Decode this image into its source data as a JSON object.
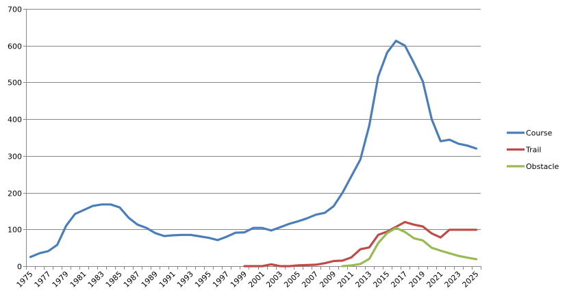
{
  "chart_data": {
    "type": "line",
    "title": "",
    "xlabel": "",
    "ylabel": "",
    "ylim": [
      0,
      700
    ],
    "yticks": [
      0,
      100,
      200,
      300,
      400,
      500,
      600,
      700
    ],
    "grid": true,
    "legend_position": "right",
    "x": [
      1975,
      1976,
      1977,
      1978,
      1979,
      1980,
      1981,
      1982,
      1983,
      1984,
      1985,
      1986,
      1987,
      1988,
      1989,
      1990,
      1991,
      1992,
      1993,
      1994,
      1995,
      1996,
      1997,
      1998,
      1999,
      2000,
      2001,
      2002,
      2003,
      2004,
      2005,
      2006,
      2007,
      2008,
      2009,
      2010,
      2011,
      2012,
      2013,
      2014,
      2015,
      2016,
      2017,
      2018,
      2019,
      2020,
      2021,
      2022,
      2023,
      2024,
      2025
    ],
    "x_tick_labels": [
      "1975",
      "1977",
      "1979",
      "1981",
      "1983",
      "1985",
      "1987",
      "1989",
      "1991",
      "1993",
      "1995",
      "1997",
      "1999",
      "2001",
      "2003",
      "2005",
      "2007",
      "2009",
      "2011",
      "2013",
      "2015",
      "2017",
      "2019",
      "2021",
      "2023",
      "2025"
    ],
    "series": [
      {
        "name": "Course",
        "color": "#4a7ebb",
        "values": [
          25,
          35,
          41,
          58,
          110,
          142,
          153,
          164,
          168,
          168,
          160,
          132,
          113,
          104,
          90,
          82,
          84,
          85,
          85,
          81,
          77,
          71,
          80,
          91,
          92,
          104,
          104,
          97,
          106,
          115,
          122,
          130,
          140,
          145,
          163,
          200,
          245,
          290,
          383,
          516,
          581,
          613,
          600,
          553,
          503,
          400,
          340,
          344,
          333,
          328,
          320
        ]
      },
      {
        "name": "Trail",
        "color": "#be4b48",
        "values": [
          null,
          null,
          null,
          null,
          null,
          null,
          null,
          null,
          null,
          null,
          null,
          null,
          null,
          null,
          null,
          null,
          null,
          null,
          null,
          null,
          null,
          null,
          null,
          null,
          0,
          0,
          0,
          5,
          0,
          0,
          2,
          3,
          4,
          8,
          14,
          15,
          24,
          46,
          51,
          85,
          94,
          107,
          120,
          113,
          108,
          89,
          78,
          99,
          99,
          99,
          99
        ]
      },
      {
        "name": "Obstacle",
        "color": "#98b954",
        "values": [
          null,
          null,
          null,
          null,
          null,
          null,
          null,
          null,
          null,
          null,
          null,
          null,
          null,
          null,
          null,
          null,
          null,
          null,
          null,
          null,
          null,
          null,
          null,
          null,
          null,
          null,
          null,
          null,
          null,
          null,
          null,
          null,
          null,
          null,
          null,
          0,
          2,
          6,
          20,
          63,
          90,
          104,
          93,
          76,
          70,
          50,
          42,
          35,
          28,
          23,
          19
        ]
      }
    ]
  },
  "colors": {
    "gridline": "#868686",
    "axis": "#868686",
    "background": "#ffffff"
  }
}
